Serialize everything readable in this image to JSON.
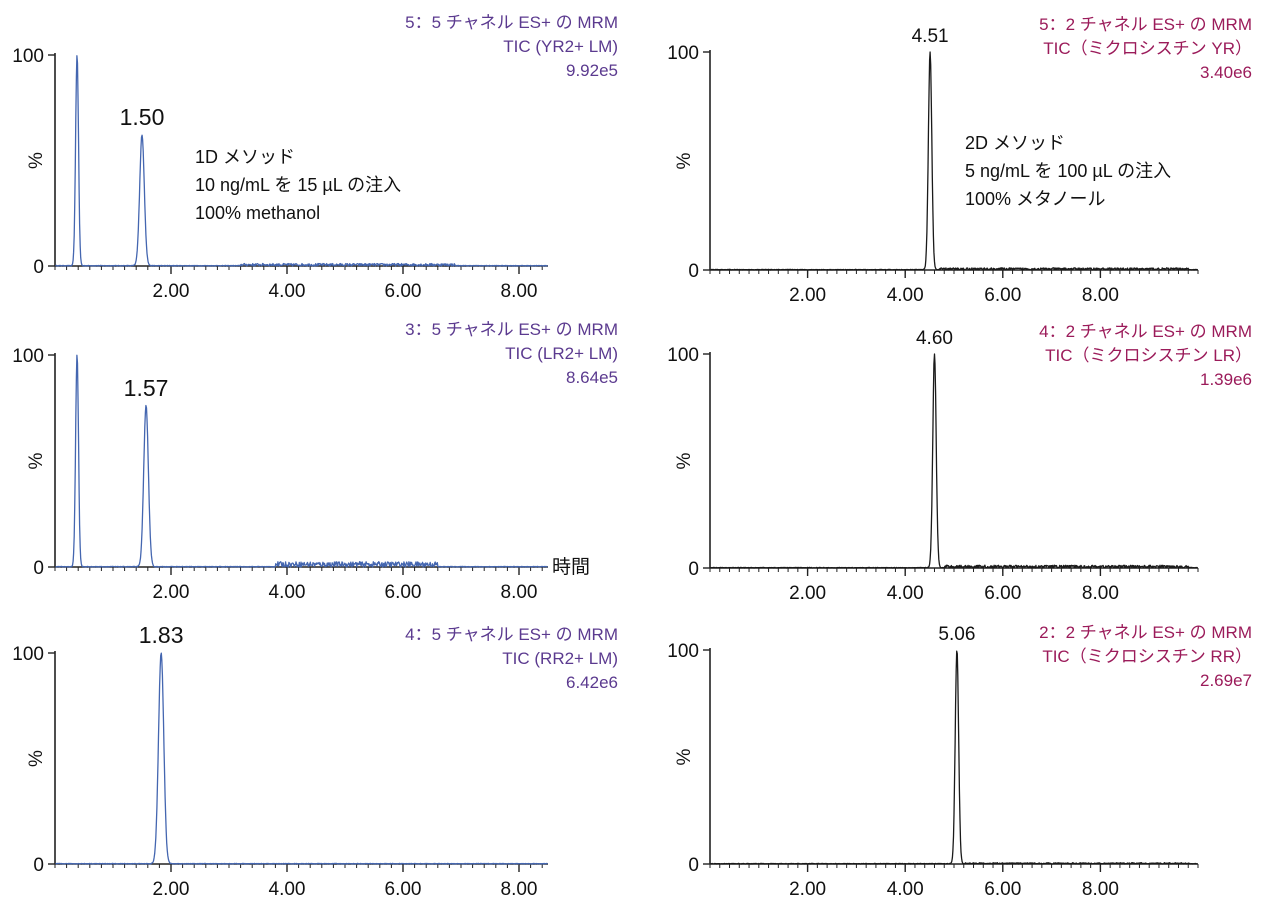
{
  "chart_data": [
    {
      "type": "line",
      "color": "#4466b0",
      "hdr_color": "#5b3a8f",
      "header": [
        "5：5 チャネル ES+ の MRM",
        "TIC (YR2+ LM)",
        "9.92e5"
      ],
      "ylabel": "%",
      "yticks": [
        "0",
        "100"
      ],
      "xticks": [
        "2.00",
        "4.00",
        "6.00",
        "8.00"
      ],
      "xlim": [
        0.0,
        8.5
      ],
      "ylim": [
        0,
        100
      ],
      "peak_label": "1.50",
      "x_unit_label": "",
      "notes": [
        "1D メソッド",
        "10 ng/mL を 15 µL の注入",
        "100% methanol"
      ],
      "peaks": [
        {
          "x": 0.38,
          "y": 100,
          "w": 0.025
        },
        {
          "x": 1.5,
          "y": 62,
          "w": 0.04
        }
      ],
      "noise": {
        "from": 3.2,
        "to": 6.9,
        "amp": 1.2
      }
    },
    {
      "type": "line",
      "color": "#4466b0",
      "hdr_color": "#5b3a8f",
      "header": [
        "3：5 チャネル ES+ の MRM",
        "TIC (LR2+ LM)",
        "8.64e5"
      ],
      "ylabel": "%",
      "yticks": [
        "0",
        "100"
      ],
      "xticks": [
        "2.00",
        "4.00",
        "6.00",
        "8.00"
      ],
      "xlim": [
        0.0,
        8.5
      ],
      "ylim": [
        0,
        100
      ],
      "peak_label": "1.57",
      "x_unit_label": "時間",
      "notes": [],
      "peaks": [
        {
          "x": 0.38,
          "y": 100,
          "w": 0.025
        },
        {
          "x": 1.57,
          "y": 76,
          "w": 0.04
        }
      ],
      "noise": {
        "from": 3.8,
        "to": 6.6,
        "amp": 2.5
      }
    },
    {
      "type": "line",
      "color": "#4466b0",
      "hdr_color": "#5b3a8f",
      "header": [
        "4：5 チャネル ES+ の MRM",
        "TIC (RR2+ LM)",
        "6.42e6"
      ],
      "ylabel": "%",
      "yticks": [
        "0",
        "100"
      ],
      "xticks": [
        "2.00",
        "4.00",
        "6.00",
        "8.00"
      ],
      "xlim": [
        0.0,
        8.5
      ],
      "ylim": [
        0,
        100
      ],
      "peak_label": "1.83",
      "x_unit_label": "",
      "notes": [],
      "peaks": [
        {
          "x": 1.83,
          "y": 100,
          "w": 0.045
        }
      ],
      "noise": {
        "from": 0,
        "to": 0,
        "amp": 0
      }
    },
    {
      "type": "line",
      "color": "#1a1a1a",
      "hdr_color": "#9b1b5a",
      "header": [
        "5：2 チャネル ES+ の MRM",
        "TIC（ミクロシスチン YR）",
        "3.40e6"
      ],
      "ylabel": "%",
      "yticks": [
        "0",
        "100"
      ],
      "xticks": [
        "2.00",
        "4.00",
        "6.00",
        "8.00"
      ],
      "xlim": [
        0.0,
        10.0
      ],
      "ylim": [
        0,
        100
      ],
      "peak_label": "4.51",
      "x_unit_label": "",
      "notes": [
        "2D メソッド",
        "5 ng/mL を 100 µL の注入",
        "100% メタノール"
      ],
      "peaks": [
        {
          "x": 4.51,
          "y": 100,
          "w": 0.035
        }
      ],
      "noise": {
        "from": 4.7,
        "to": 9.8,
        "amp": 1.0
      }
    },
    {
      "type": "line",
      "color": "#1a1a1a",
      "hdr_color": "#9b1b5a",
      "header": [
        "4：2 チャネル ES+ の MRM",
        "TIC（ミクロシスチン LR）",
        "1.39e6"
      ],
      "ylabel": "%",
      "yticks": [
        "0",
        "100"
      ],
      "xticks": [
        "2.00",
        "4.00",
        "6.00",
        "8.00"
      ],
      "xlim": [
        0.0,
        10.0
      ],
      "ylim": [
        0,
        100
      ],
      "peak_label": "4.60",
      "x_unit_label": "",
      "notes": [],
      "peaks": [
        {
          "x": 4.6,
          "y": 100,
          "w": 0.035
        }
      ],
      "noise": {
        "from": 4.8,
        "to": 9.8,
        "amp": 1.3
      }
    },
    {
      "type": "line",
      "color": "#1a1a1a",
      "hdr_color": "#9b1b5a",
      "header": [
        "2：2 チャネル ES+ の MRM",
        "TIC（ミクロシスチン RR）",
        "2.69e7"
      ],
      "ylabel": "%",
      "yticks": [
        "0",
        "100"
      ],
      "xticks": [
        "2.00",
        "4.00",
        "6.00",
        "8.00"
      ],
      "xlim": [
        0.0,
        10.0
      ],
      "ylim": [
        0,
        100
      ],
      "peak_label": "5.06",
      "x_unit_label": "",
      "notes": [],
      "peaks": [
        {
          "x": 5.06,
          "y": 100,
          "w": 0.035
        }
      ],
      "noise": {
        "from": 5.2,
        "to": 9.8,
        "amp": 0.6
      }
    }
  ]
}
